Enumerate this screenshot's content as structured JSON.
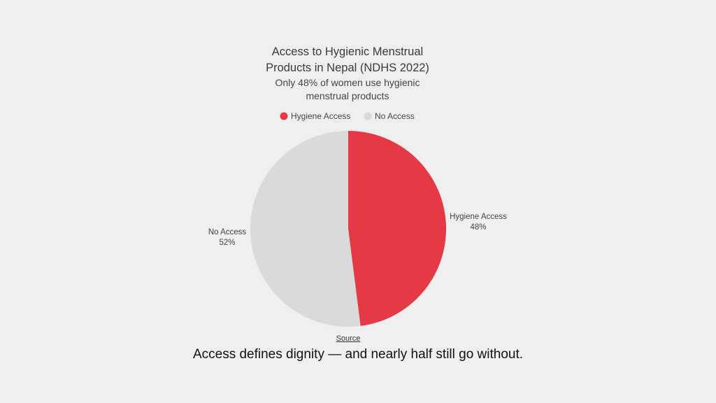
{
  "chart_data": {
    "type": "pie",
    "title_lines": [
      "Access to Hygienic Menstrual",
      "Products in Nepal (NDHS 2022)"
    ],
    "subtitle_lines": [
      "Only 48% of women use hygienic",
      "menstrual products"
    ],
    "legend_position": "top",
    "slices": [
      {
        "name": "Hygiene Access",
        "value": 48,
        "label": "48%",
        "color": "#e63946"
      },
      {
        "name": "No Access",
        "value": 52,
        "label": "52%",
        "color": "#dadada"
      }
    ]
  },
  "source_label": "Source",
  "caption": "Access defines dignity — and nearly half still go without."
}
